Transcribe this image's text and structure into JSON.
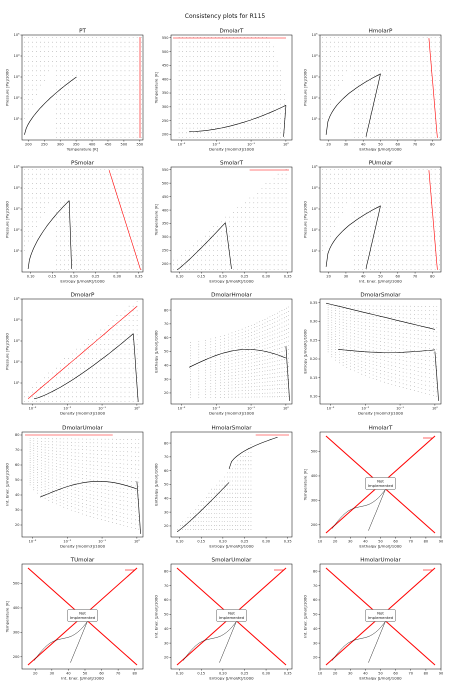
{
  "figure_title": "Consistency plots for R115",
  "not_implemented_text": "Not\nImplemented",
  "colors": {
    "saturation": "#000000",
    "boundary": "#ff0000",
    "dots": "#222222"
  },
  "chart_data": [
    {
      "title": "PT",
      "type": "scatter",
      "xlabel": "Temperature [K]",
      "ylabel": "Pressure [Pa]/1000",
      "xlim": [
        180,
        560
      ],
      "ylim": [
        1,
        100000
      ],
      "ylog": true,
      "xticks": [
        200,
        250,
        300,
        350,
        400,
        450,
        500,
        550
      ],
      "yticks": [
        "10^1",
        "10^2",
        "10^3",
        "10^4",
        "10^5"
      ],
      "panel": 0
    },
    {
      "title": "DmolarT",
      "type": "scatter",
      "xlabel": "Density [mol/m3]/1000",
      "ylabel": "Temperature [K]",
      "xlim": [
        0.0005,
        1.5
      ],
      "ylim": [
        180,
        560
      ],
      "xlog": true,
      "xticks": [
        "10^-3",
        "10^-2",
        "10^-1",
        "10^0",
        "10^1"
      ],
      "yticks": [
        200,
        250,
        300,
        350,
        400,
        450,
        500,
        550
      ],
      "panel": 1
    },
    {
      "title": "HmolarP",
      "type": "scatter",
      "xlabel": "Enthalpy [J/mol]/1000",
      "ylabel": "Pressure [Pa]/1000",
      "xlim": [
        15,
        85
      ],
      "ylim": [
        1,
        100000
      ],
      "ylog": true,
      "xticks": [
        20,
        30,
        40,
        50,
        60,
        70,
        80
      ],
      "yticks": [
        "10^1",
        "10^2",
        "10^3",
        "10^4",
        "10^5"
      ],
      "panel": 2
    },
    {
      "title": "PSmolar",
      "type": "scatter",
      "xlabel": "Entropy [J/mol/K]/1000",
      "ylabel": "Pressure [Pa]/1000",
      "xlim": [
        0.08,
        0.36
      ],
      "ylim": [
        1,
        100000
      ],
      "ylog": true,
      "xticks": [
        0.1,
        0.15,
        0.2,
        0.25,
        0.3,
        0.35
      ],
      "yticks": [
        "10^1",
        "10^2",
        "10^3",
        "10^4",
        "10^5"
      ],
      "panel": 3
    },
    {
      "title": "SmolarT",
      "type": "scatter",
      "xlabel": "Entropy [J/mol/K]/1000",
      "ylabel": "Temperature [K]",
      "xlim": [
        0.08,
        0.36
      ],
      "ylim": [
        170,
        560
      ],
      "xticks": [
        0.1,
        0.15,
        0.2,
        0.25,
        0.3,
        0.35
      ],
      "yticks": [
        200,
        250,
        300,
        350,
        400,
        450,
        500,
        550
      ],
      "panel": 4
    },
    {
      "title": "PUmolar",
      "type": "scatter",
      "xlabel": "Int. Ener. [J/mol]/1000",
      "ylabel": "Pressure [Pa]/1000",
      "xlim": [
        15,
        85
      ],
      "ylim": [
        1,
        100000
      ],
      "ylog": true,
      "xticks": [
        20,
        30,
        40,
        50,
        60,
        70,
        80
      ],
      "yticks": [
        "10^1",
        "10^2",
        "10^3",
        "10^4",
        "10^5"
      ],
      "panel": 5
    },
    {
      "title": "DmolarP",
      "type": "scatter",
      "xlabel": "Density [mol/m3]/1000",
      "ylabel": "Pressure [Pa]/1000",
      "xlim": [
        0.0005,
        1.5
      ],
      "ylim": [
        1,
        100000
      ],
      "xlog": true,
      "ylog": true,
      "xticks": [
        "10^-3",
        "10^-2",
        "10^-1",
        "10^0",
        "10^1"
      ],
      "yticks": [
        "10^1",
        "10^2",
        "10^3",
        "10^4",
        "10^5"
      ],
      "panel": 6
    },
    {
      "title": "DmolarHmolar",
      "type": "scatter",
      "xlabel": "Density [mol/m3]/1000",
      "ylabel": "Enthalpy [J/mol]/1000",
      "xlim": [
        0.0005,
        1.5
      ],
      "ylim": [
        12,
        88
      ],
      "xlog": true,
      "xticks": [
        "10^-3",
        "10^-2",
        "10^-1",
        "10^0",
        "10^1"
      ],
      "yticks": [
        20,
        30,
        40,
        50,
        60,
        70,
        80
      ],
      "panel": 7
    },
    {
      "title": "DmolarSmolar",
      "type": "scatter",
      "xlabel": "Density [mol/m3]/1000",
      "ylabel": "Entropy [J/mol/K]/1000",
      "xlim": [
        0.0005,
        1.5
      ],
      "ylim": [
        0.08,
        0.36
      ],
      "xlog": true,
      "xticks": [
        "10^-3",
        "10^-2",
        "10^-1",
        "10^0",
        "10^1"
      ],
      "yticks": [
        0.1,
        0.15,
        0.2,
        0.25,
        0.3,
        0.35
      ],
      "panel": 8
    },
    {
      "title": "DmolarUmolar",
      "type": "scatter",
      "xlabel": "Density [mol/m3]/1000",
      "ylabel": "Int. Ener. [J/mol]/1000",
      "xlim": [
        0.0005,
        1.5
      ],
      "ylim": [
        12,
        82
      ],
      "xlog": true,
      "xticks": [
        "10^-3",
        "10^-2",
        "10^-1",
        "10^0",
        "10^1"
      ],
      "yticks": [
        20,
        30,
        40,
        50,
        60,
        70,
        80
      ],
      "panel": 9
    },
    {
      "title": "HmolarSmolar",
      "type": "scatter",
      "xlabel": "Entropy [J/mol/K]/1000",
      "ylabel": "Enthalpy [J/mol]/1000",
      "xlim": [
        0.08,
        0.36
      ],
      "ylim": [
        12,
        88
      ],
      "xticks": [
        0.1,
        0.15,
        0.2,
        0.25,
        0.3,
        0.35
      ],
      "yticks": [
        20,
        30,
        40,
        50,
        60,
        70,
        80
      ],
      "panel": 10
    },
    {
      "title": "HmolarT",
      "type": "line",
      "xlabel": "Enthalpy [J/mol]/1000",
      "ylabel": "Temperature [K]",
      "xlim": [
        10,
        90
      ],
      "ylim": [
        150,
        580
      ],
      "xticks": [
        10,
        20,
        30,
        40,
        50,
        60,
        70,
        80,
        90
      ],
      "yticks": [
        200,
        300,
        400,
        500
      ],
      "not_implemented": true,
      "panel": 11
    },
    {
      "title": "TUmolar",
      "type": "line",
      "xlabel": "Int. Ener. [J/mol]/1000",
      "ylabel": "Temperature [K]",
      "xlim": [
        12,
        85
      ],
      "ylim": [
        150,
        580
      ],
      "xticks": [
        20,
        30,
        40,
        50,
        60,
        70,
        80
      ],
      "yticks": [
        200,
        300,
        400,
        500
      ],
      "not_implemented": true,
      "panel": 12
    },
    {
      "title": "SmolarUmolar",
      "type": "line",
      "xlabel": "Entropy [J/mol/K]/1000",
      "ylabel": "Int. Ener. [J/mol]/1000",
      "xlim": [
        0.08,
        0.36
      ],
      "ylim": [
        12,
        85
      ],
      "xticks": [
        0.1,
        0.15,
        0.2,
        0.25,
        0.3,
        0.35
      ],
      "yticks": [
        20,
        30,
        40,
        50,
        60,
        70,
        80
      ],
      "not_implemented": true,
      "panel": 13
    },
    {
      "title": "HmolarUmolar",
      "type": "line",
      "xlabel": "Enthalpy [J/mol]/1000",
      "ylabel": "Int. Ener. [J/mol]/1000",
      "xlim": [
        10,
        90
      ],
      "ylim": [
        12,
        85
      ],
      "xticks": [
        10,
        20,
        30,
        40,
        50,
        60,
        70,
        80,
        90
      ],
      "yticks": [
        20,
        30,
        40,
        50,
        60,
        70,
        80
      ],
      "not_implemented": true,
      "panel": 14
    }
  ]
}
